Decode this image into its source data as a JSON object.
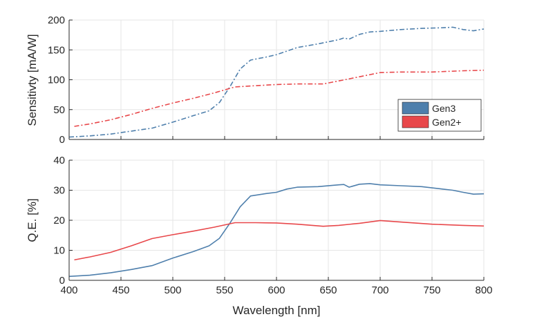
{
  "figure": {
    "xlabel": "Wavelength [nm]",
    "legend": {
      "placement": "right-middle of top panel",
      "entries": [
        "Gen3",
        "Gen2+"
      ]
    }
  },
  "colors": {
    "gen3": "#4e7fac",
    "gen2plus": "#e8474a",
    "grid": "#e6e6e6",
    "axis": "#262626"
  },
  "chart_data": [
    {
      "type": "line",
      "title": "",
      "xlabel": "",
      "ylabel": "Sensitivty [mA/W]",
      "xlim": [
        400,
        800
      ],
      "ylim": [
        0,
        200
      ],
      "xticks": [
        400,
        450,
        500,
        550,
        600,
        650,
        700,
        750,
        800
      ],
      "yticks": [
        0,
        50,
        100,
        150,
        200
      ],
      "grid": true,
      "line_style": "dash-dot",
      "legend_placement": "right-middle",
      "series": [
        {
          "name": "Gen3",
          "color": "#4e7fac",
          "x": [
            400,
            420,
            440,
            460,
            480,
            500,
            520,
            535,
            545,
            555,
            565,
            575,
            590,
            600,
            610,
            620,
            640,
            660,
            665,
            670,
            680,
            690,
            700,
            720,
            740,
            760,
            770,
            780,
            790,
            800
          ],
          "y": [
            4,
            6,
            9,
            14,
            19,
            29,
            40,
            48,
            62,
            88,
            118,
            133,
            138,
            142,
            148,
            154,
            160,
            167,
            170,
            168,
            176,
            180,
            181,
            184,
            186,
            187,
            188,
            184,
            182,
            185
          ]
        },
        {
          "name": "Gen2+",
          "color": "#e8474a",
          "x": [
            405,
            420,
            440,
            460,
            480,
            500,
            520,
            540,
            560,
            580,
            600,
            620,
            645,
            660,
            680,
            700,
            720,
            750,
            780,
            800
          ],
          "y": [
            22,
            26,
            33,
            42,
            52,
            61,
            69,
            78,
            88,
            90,
            92,
            93,
            93,
            98,
            105,
            112,
            113,
            113,
            115,
            116
          ]
        }
      ]
    },
    {
      "type": "line",
      "title": "",
      "xlabel": "Wavelength [nm]",
      "ylabel": "Q.E. [%]",
      "xlim": [
        400,
        800
      ],
      "ylim": [
        0,
        40
      ],
      "xticks": [
        400,
        450,
        500,
        550,
        600,
        650,
        700,
        750,
        800
      ],
      "yticks": [
        0,
        10,
        20,
        30,
        40
      ],
      "grid": true,
      "line_style": "solid",
      "series": [
        {
          "name": "Gen3",
          "color": "#4e7fac",
          "x": [
            400,
            420,
            440,
            460,
            480,
            500,
            520,
            535,
            545,
            555,
            565,
            575,
            590,
            600,
            610,
            620,
            640,
            660,
            665,
            670,
            680,
            690,
            700,
            720,
            740,
            760,
            770,
            780,
            790,
            800
          ],
          "y": [
            1.3,
            1.7,
            2.5,
            3.6,
            4.9,
            7.4,
            9.6,
            11.5,
            14.0,
            19.0,
            24.5,
            28.1,
            28.9,
            29.3,
            30.4,
            31.0,
            31.2,
            31.8,
            31.9,
            31.0,
            32.0,
            32.2,
            31.8,
            31.5,
            31.2,
            30.4,
            30.0,
            29.3,
            28.7,
            28.8
          ]
        },
        {
          "name": "Gen2+",
          "color": "#e8474a",
          "x": [
            405,
            420,
            440,
            460,
            480,
            500,
            520,
            540,
            560,
            580,
            600,
            620,
            645,
            660,
            680,
            700,
            720,
            750,
            780,
            800
          ],
          "y": [
            6.8,
            7.8,
            9.3,
            11.5,
            13.9,
            15.2,
            16.4,
            17.7,
            19.2,
            19.2,
            19.1,
            18.7,
            18.0,
            18.3,
            19.0,
            19.9,
            19.4,
            18.7,
            18.3,
            18.1
          ]
        }
      ]
    }
  ]
}
